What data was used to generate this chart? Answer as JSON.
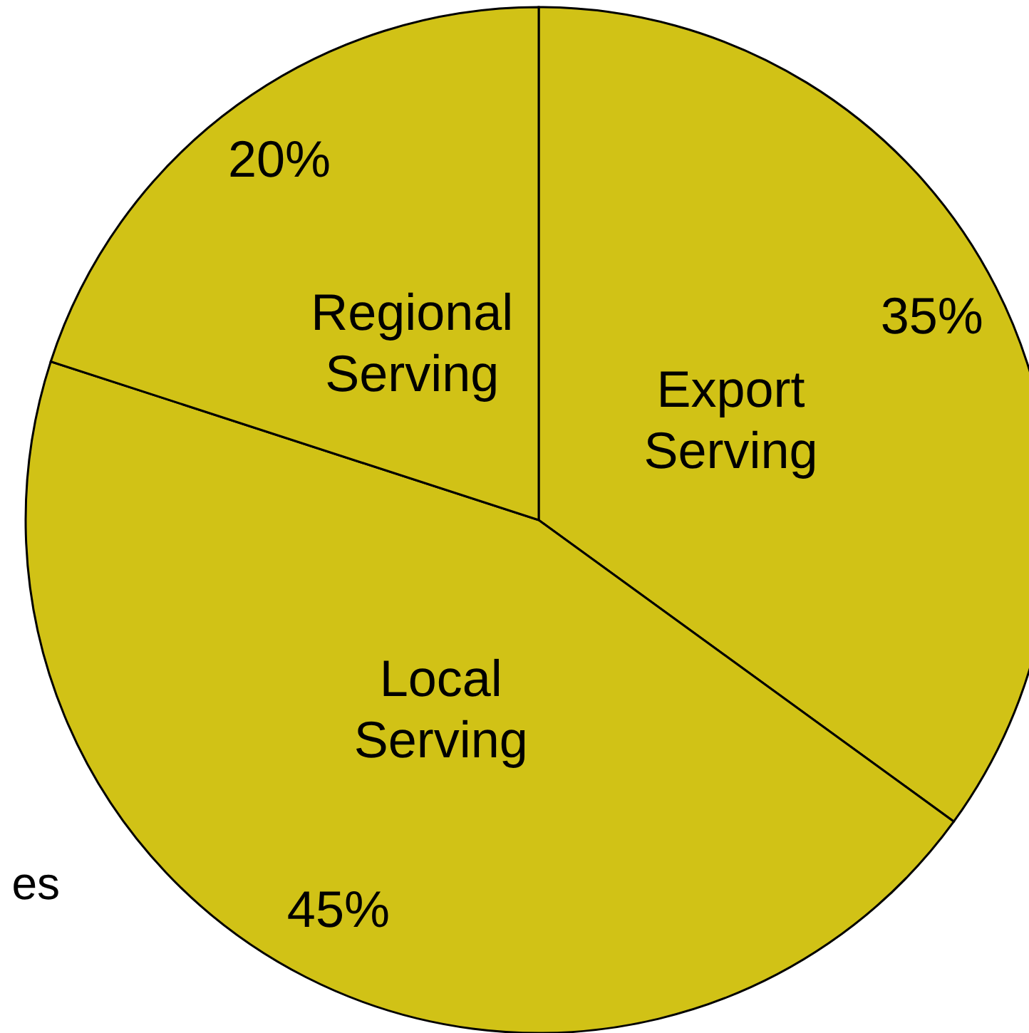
{
  "chart_data": {
    "type": "pie",
    "categories": [
      "Export Serving",
      "Local Serving",
      "Regional Serving"
    ],
    "values": [
      35,
      45,
      20
    ],
    "colors": [
      "#d1c216",
      "#d1c216",
      "#d1c216"
    ],
    "value_labels": [
      "35%",
      "45%",
      "20%"
    ],
    "annotations": [
      "es"
    ]
  }
}
